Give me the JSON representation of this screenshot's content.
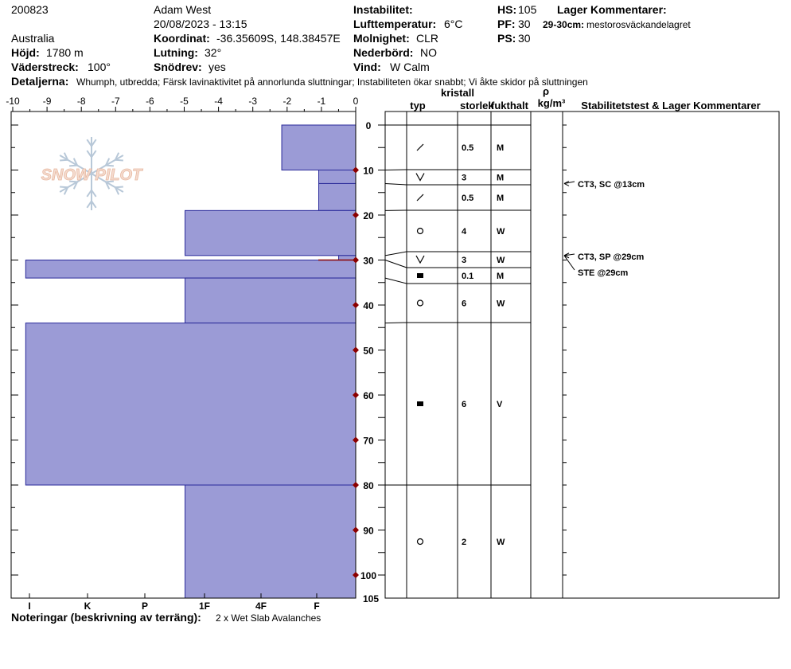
{
  "header": {
    "obs_id": "200823",
    "observer": "Adam West",
    "datetime": "20/08/2023 - 13:15",
    "country": "Australia",
    "elevation_label": "Höjd:",
    "elevation": "1780 m",
    "aspect_label": "Väderstreck:",
    "aspect": "100°",
    "coord_label": "Koordinat:",
    "coord": "-36.35609S, 148.38457E",
    "slope_label": "Lutning:",
    "slope": "32°",
    "drift_label": "Snödrev:",
    "drift": "yes",
    "instab_label": "Instabilitet:",
    "airtemp_label": "Lufttemperatur:",
    "airtemp": "6°C",
    "sky_label": "Molnighet:",
    "sky": "CLR",
    "precip_label": "Nederbörd:",
    "precip": "NO",
    "wind_label": "Vind:",
    "wind": "W Calm",
    "hs_label": "HS:",
    "hs": "105",
    "pf_label": "PF:",
    "pf": "30",
    "ps_label": "PS:",
    "ps": "30",
    "layer_comments_label": "Lager Kommentarer:",
    "layer_comment_range": "29-30cm:",
    "layer_comment_text": "mestorosväckandelagret",
    "details_label": "Detaljerna:",
    "details": "Whumph, utbredda;  Färsk lavinaktivitet på annorlunda sluttningar;  Instabiliteten ökar snabbt;  Vi åkte skidor på sluttningen"
  },
  "footer": {
    "notes_label": "Noteringar (beskrivning av terräng):",
    "notes": "2 x Wet Slab Avalanches"
  },
  "logo_text": "SNOW PILOT",
  "columns": {
    "kristall": "kristall",
    "typ": "typ",
    "storlek": "storlek",
    "fukthalt": "fukthalt",
    "rho": "ρ",
    "density_unit": "kg/m³",
    "stability": "Stabilitetstest & Lager Kommentarer"
  },
  "colors": {
    "hardness_fill": "#9b9bd6",
    "hardness_edge": "#2a2a9a",
    "temp_marker": "#8b0000"
  },
  "chart_data": {
    "type": "bar",
    "title": "",
    "temp_axis": {
      "label": "",
      "ticks": [
        -10,
        -9,
        -8,
        -7,
        -6,
        -5,
        -4,
        -3,
        -2,
        -1,
        0
      ],
      "range": [
        -10,
        0
      ]
    },
    "depth_axis": {
      "ticks": [
        0,
        10,
        20,
        30,
        40,
        50,
        60,
        70,
        80,
        90,
        100
      ],
      "range": [
        0,
        105
      ],
      "bottom_label": "105"
    },
    "hardness_axis": {
      "ticks": [
        "I",
        "K",
        "P",
        "1F",
        "4F",
        "F"
      ],
      "values": [
        5,
        4,
        3,
        2,
        1,
        0
      ]
    },
    "layers": [
      {
        "top": 0,
        "bottom": 10,
        "hardness": "F-4F",
        "hardness_value": 1.3,
        "grain_symbol": "slash",
        "size": "0.5",
        "moisture": "M"
      },
      {
        "top": 10,
        "bottom": 13,
        "hardness": "F",
        "hardness_value": 0.65,
        "grain_symbol": "vee",
        "size": "3",
        "moisture": "M"
      },
      {
        "top": 13,
        "bottom": 19,
        "hardness": "F",
        "hardness_value": 0.65,
        "grain_symbol": "slash",
        "size": "0.5",
        "moisture": "M"
      },
      {
        "top": 19,
        "bottom": 29,
        "hardness": "P",
        "hardness_value": 3,
        "grain_symbol": "circle",
        "size": "4",
        "moisture": "W"
      },
      {
        "top": 29,
        "bottom": 30,
        "hardness": "F",
        "hardness_value": 0.3,
        "grain_symbol": "vee",
        "size": "3",
        "moisture": "W"
      },
      {
        "top": 30,
        "bottom": 34,
        "hardness": "I",
        "hardness_value": 5.8,
        "grain_symbol": "square",
        "size": "0.1",
        "moisture": "M"
      },
      {
        "top": 34,
        "bottom": 44,
        "hardness": "P",
        "hardness_value": 3,
        "grain_symbol": "circle",
        "size": "6",
        "moisture": "W"
      },
      {
        "top": 44,
        "bottom": 80,
        "hardness": "I",
        "hardness_value": 5.8,
        "grain_symbol": "square",
        "size": "6",
        "moisture": "V"
      },
      {
        "top": 80,
        "bottom": 105,
        "hardness": "P",
        "hardness_value": 3,
        "grain_symbol": "circle",
        "size": "2",
        "moisture": "W"
      }
    ],
    "temperature_points": [
      {
        "depth": 10,
        "temp": 0
      },
      {
        "depth": 20,
        "temp": 0
      },
      {
        "depth": 30,
        "temp": 0
      },
      {
        "depth": 40,
        "temp": 0
      },
      {
        "depth": 50,
        "temp": 0
      },
      {
        "depth": 60,
        "temp": 0
      },
      {
        "depth": 70,
        "temp": 0
      },
      {
        "depth": 80,
        "temp": 0
      },
      {
        "depth": 90,
        "temp": 0
      },
      {
        "depth": 100,
        "temp": 0
      }
    ],
    "stability_tests": [
      {
        "text": "CT3, SC @13cm",
        "depth": 13
      },
      {
        "text": "CT3, SP @29cm",
        "depth": 29
      },
      {
        "text": "STE @29cm",
        "depth": 29
      }
    ]
  }
}
